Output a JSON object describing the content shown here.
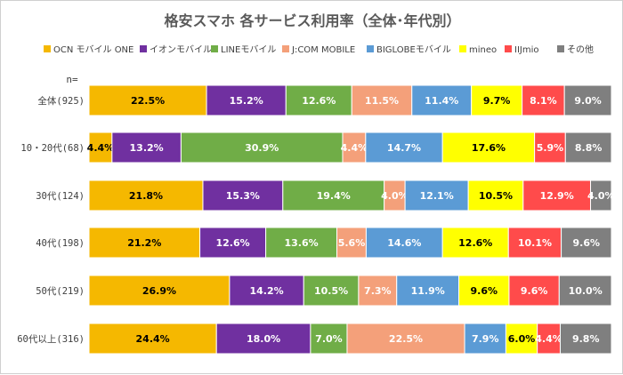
{
  "chart_data": {
    "type": "bar",
    "stacked": true,
    "normalized": true,
    "orientation": "horizontal",
    "title": "格安スマホ 各サービス利用率（全体･年代別）",
    "n_label": "n=",
    "categories": [
      "全体(925)",
      "10・20代(68)",
      "30代(124)",
      "40代(198)",
      "50代(219)",
      "60代以上(316)"
    ],
    "series": [
      {
        "name": "OCN モバイル ONE",
        "color": "#F5B800",
        "values": [
          22.5,
          4.4,
          21.8,
          21.2,
          26.9,
          24.4
        ],
        "labels": [
          "22.5%",
          "4.4%",
          "21.8%",
          "21.2%",
          "26.9%",
          "24.4%"
        ]
      },
      {
        "name": "イオンモバイル",
        "color": "#7030A0",
        "values": [
          15.2,
          13.2,
          15.3,
          12.6,
          14.2,
          18.0
        ],
        "labels": [
          "15.2%",
          "13.2%",
          "15.3%",
          "12.6%",
          "14.2%",
          "18.0%"
        ]
      },
      {
        "name": "LINEモバイル",
        "color": "#70AD47",
        "values": [
          12.6,
          30.9,
          19.4,
          13.6,
          10.5,
          7.0
        ],
        "labels": [
          "12.6%",
          "30.9%",
          "19.4%",
          "13.6%",
          "10.5%",
          "7.0%"
        ]
      },
      {
        "name": "J:COM MOBILE",
        "color": "#F4A07A",
        "values": [
          11.5,
          4.4,
          4.0,
          5.6,
          7.3,
          22.5
        ],
        "labels": [
          "11.5%",
          "4.4%",
          "4.0%",
          "5.6%",
          "7.3%",
          "22.5%"
        ]
      },
      {
        "name": "BIGLOBEモバイル",
        "color": "#5B9BD5",
        "values": [
          11.4,
          14.7,
          12.1,
          14.6,
          11.9,
          7.9
        ],
        "labels": [
          "11.4%",
          "14.7%",
          "12.1%",
          "14.6%",
          "11.9%",
          "7.9%"
        ]
      },
      {
        "name": "mineo",
        "color": "#FFFF00",
        "values": [
          9.7,
          17.6,
          10.5,
          12.6,
          9.6,
          6.0
        ],
        "labels": [
          "9.7%",
          "17.6%",
          "10.5%",
          "12.6%",
          "9.6%",
          "6.0%"
        ]
      },
      {
        "name": "IIJmio",
        "color": "#FF4B4B",
        "values": [
          8.1,
          5.9,
          12.9,
          10.1,
          9.6,
          4.4
        ],
        "labels": [
          "8.1%",
          "5.9%",
          "12.9%",
          "10.1%",
          "9.6%",
          "4.4%"
        ]
      },
      {
        "name": "その他",
        "color": "#7F7F7F",
        "values": [
          9.0,
          8.8,
          4.0,
          9.6,
          10.0,
          9.8
        ],
        "labels": [
          "9.0%",
          "8.8%",
          "4.0%",
          "9.6%",
          "10.0%",
          "9.8%"
        ]
      }
    ],
    "label_colors": [
      "#000000",
      "#ffffff",
      "#ffffff",
      "#ffffff",
      "#ffffff",
      "#000000",
      "#ffffff",
      "#ffffff"
    ],
    "legend_position": "top",
    "gridlines": false
  }
}
